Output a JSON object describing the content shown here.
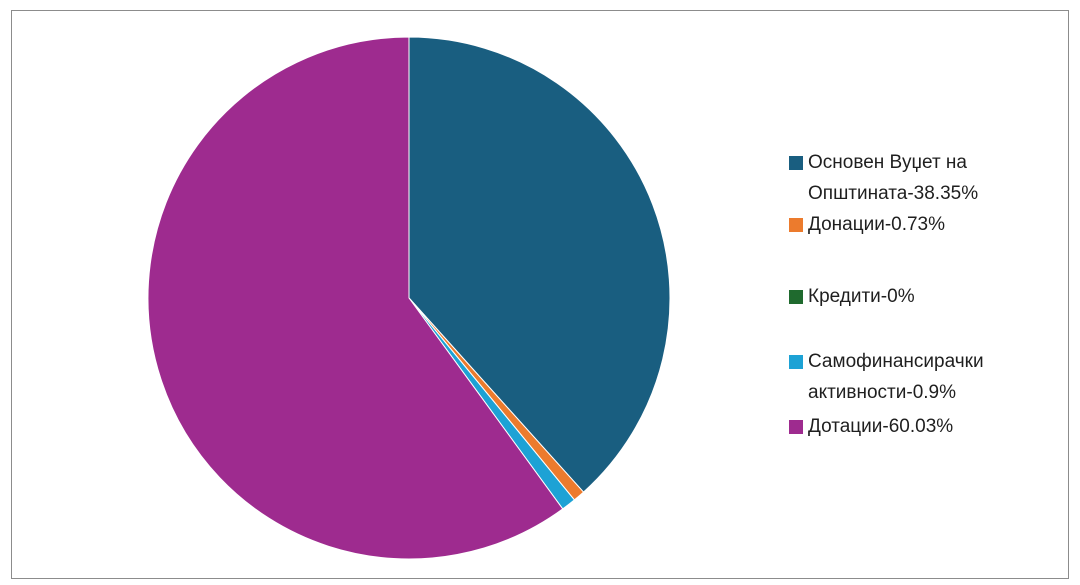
{
  "chart_data": {
    "type": "pie",
    "title": "",
    "slices": [
      {
        "label": "Основен Вуџет на Општината-38.35%",
        "value": 38.35,
        "color": "#195e80"
      },
      {
        "label": "Донации-0.73%",
        "value": 0.73,
        "color": "#ec7b2d"
      },
      {
        "label": "Кредити-0%",
        "value": 0,
        "color": "#1f6a2e"
      },
      {
        "label": "Самофинансирачки активности-0.9%",
        "value": 0.9,
        "color": "#1da2d5"
      },
      {
        "label": "Дотации-60.03%",
        "value": 60.03,
        "color": "#9e2b8f"
      }
    ],
    "legend_position": "right"
  }
}
